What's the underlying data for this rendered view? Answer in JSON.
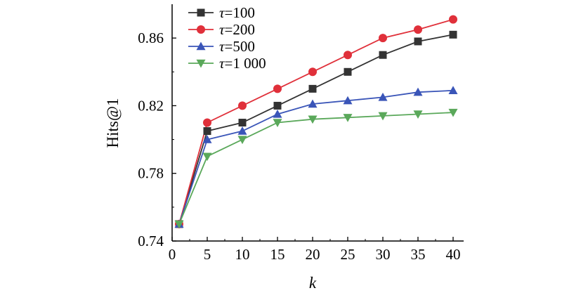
{
  "chart_data": {
    "type": "line",
    "title": "",
    "xlabel": "k",
    "ylabel": "Hits@1",
    "x": [
      1,
      5,
      10,
      15,
      20,
      25,
      30,
      35,
      40
    ],
    "xlim": [
      0,
      40
    ],
    "ylim": [
      0.74,
      0.88
    ],
    "xticks": [
      "0",
      "5",
      "10",
      "15",
      "20",
      "25",
      "30",
      "35",
      "40"
    ],
    "yticks": [
      "0.74",
      "0.78",
      "0.82",
      "0.86"
    ],
    "grid": false,
    "legend_position": "top-left",
    "series": [
      {
        "name": "τ=100",
        "legend_symbol": "τ",
        "legend_value": "=100",
        "color": "#333333",
        "marker": "square",
        "values": [
          0.75,
          0.805,
          0.81,
          0.82,
          0.83,
          0.84,
          0.85,
          0.858,
          0.862
        ]
      },
      {
        "name": "τ=200",
        "legend_symbol": "τ",
        "legend_value": "=200",
        "color": "#e0303a",
        "marker": "circle",
        "values": [
          0.75,
          0.81,
          0.82,
          0.83,
          0.84,
          0.85,
          0.86,
          0.865,
          0.871
        ]
      },
      {
        "name": "τ=500",
        "legend_symbol": "τ",
        "legend_value": "=500",
        "color": "#3a55b8",
        "marker": "triangle-up",
        "values": [
          0.75,
          0.8,
          0.805,
          0.815,
          0.821,
          0.823,
          0.825,
          0.828,
          0.829
        ]
      },
      {
        "name": "τ=1 000",
        "legend_symbol": "τ",
        "legend_value": "=1 000",
        "color": "#5aa85a",
        "marker": "triangle-down",
        "values": [
          0.75,
          0.79,
          0.8,
          0.81,
          0.812,
          0.813,
          0.814,
          0.815,
          0.816
        ]
      }
    ]
  }
}
